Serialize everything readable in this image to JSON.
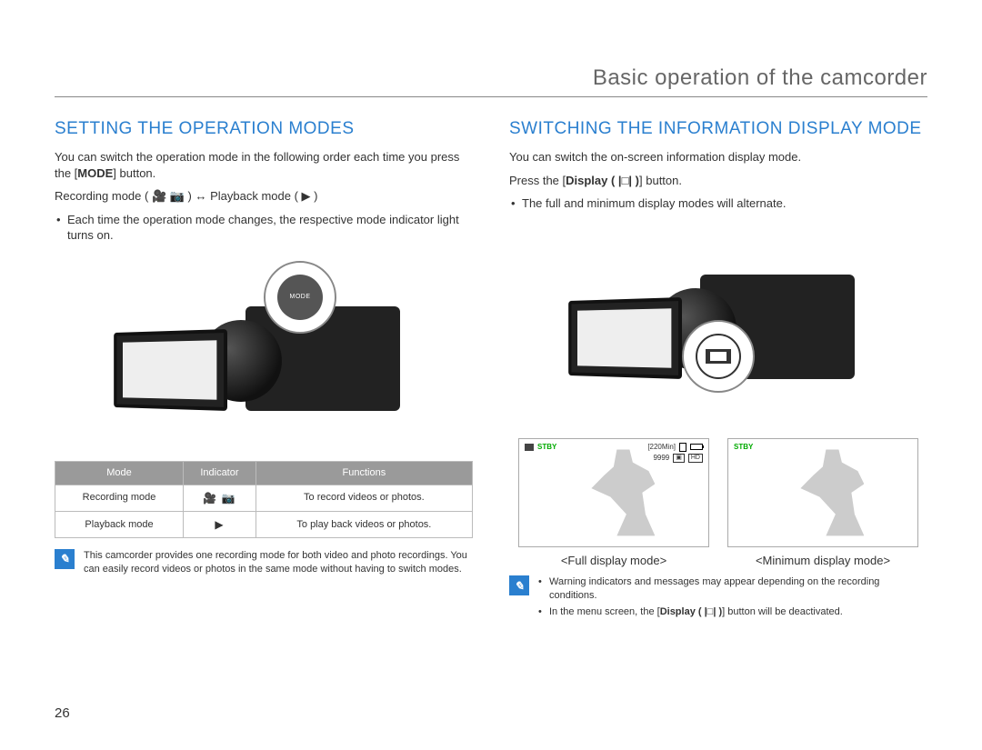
{
  "page": {
    "title": "Basic operation of the camcorder",
    "number": "26"
  },
  "left": {
    "heading": "SETTING THE OPERATION MODES",
    "p1a": "You can switch the operation mode in the following order each time you press the [",
    "p1b": "MODE",
    "p1c": "] button.",
    "mode_line": "Recording mode ( 🎥 📷 ) ↔ Playback mode ( ▶ )",
    "bullet1": "Each time the operation mode changes, the respective mode indicator light turns on.",
    "callout_label": "MODE",
    "table": {
      "headers": {
        "mode": "Mode",
        "indicator": "Indicator",
        "functions": "Functions"
      },
      "rows": [
        {
          "mode": "Recording mode",
          "indicator": "🎥 📷",
          "functions": "To record videos or photos."
        },
        {
          "mode": "Playback mode",
          "indicator": "▶",
          "functions": "To play back videos or photos."
        }
      ]
    },
    "note": "This camcorder provides one recording mode for both video and photo recordings. You can easily record videos or photos in the same mode without having to switch modes."
  },
  "right": {
    "heading": "SWITCHING THE INFORMATION DISPLAY MODE",
    "p1": "You can switch the on-screen information display mode.",
    "p2a": "Press the [",
    "p2b": "Display ( |□| )",
    "p2c": "] button.",
    "bullet1": "The full and minimum display modes will alternate.",
    "full": {
      "label": "<Full display mode>",
      "stby": "STBY",
      "time": "[220Min]",
      "shots": "9999",
      "hd": "HD"
    },
    "min": {
      "label": "<Minimum display mode>",
      "stby": "STBY"
    },
    "notes": {
      "n1": "Warning indicators and messages may appear depending on the recording conditions.",
      "n2a": "In the menu screen, the [",
      "n2b": "Display ( |□| )",
      "n2c": "] button will be deactivated."
    }
  }
}
